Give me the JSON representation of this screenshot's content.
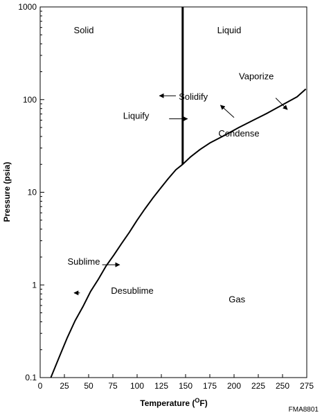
{
  "chart_data": {
    "type": "line",
    "title": "",
    "xlabel": "Temperature (",
    "xlabel_sup": "O",
    "xlabel_unit": "F)",
    "ylabel": "Pressure (psia)",
    "xlim": [
      0,
      275
    ],
    "ylim": [
      0.1,
      1000
    ],
    "yscale": "log",
    "grid": false,
    "x_ticks": [
      0,
      25,
      50,
      75,
      100,
      125,
      150,
      175,
      200,
      225,
      250,
      275
    ],
    "y_ticks": [
      {
        "value": 0.1,
        "label": "0.1"
      },
      {
        "value": 1,
        "label": "1"
      },
      {
        "value": 10,
        "label": "10"
      },
      {
        "value": 100,
        "label": "100"
      },
      {
        "value": 1000,
        "label": "1000"
      }
    ],
    "series": [
      {
        "x": [
          11,
          20,
          28,
          36,
          44,
          52,
          60,
          68,
          76,
          84,
          92,
          100,
          108,
          116,
          124,
          132,
          140,
          147,
          155,
          165,
          175,
          190,
          205,
          220,
          235,
          250,
          265,
          274
        ],
        "y": [
          0.1,
          0.17,
          0.27,
          0.41,
          0.58,
          0.85,
          1.15,
          1.6,
          2.1,
          2.8,
          3.7,
          5.0,
          6.6,
          8.6,
          11.0,
          14.0,
          17.5,
          20.0,
          24.0,
          29.0,
          34.0,
          41.0,
          50.0,
          60.0,
          72.0,
          88.0,
          107.0,
          130.0
        ]
      },
      {
        "x": [
          147,
          147
        ],
        "y": [
          20,
          1000
        ]
      }
    ],
    "regions": [
      {
        "text": "Solid",
        "x": 45,
        "y": 520
      },
      {
        "text": "Liquid",
        "x": 195,
        "y": 520
      },
      {
        "text": "Gas",
        "x": 203,
        "y": 0.65
      },
      {
        "text": "Desublime",
        "x": 95,
        "y": 0.8
      }
    ],
    "annotations": [
      {
        "text": "Solidify",
        "x": 158,
        "y": 100,
        "arrow": {
          "from": [
            140,
            110
          ],
          "to": [
            123,
            110
          ]
        }
      },
      {
        "text": "Liquify",
        "x": 99,
        "y": 62,
        "arrow": {
          "from": [
            133,
            62
          ],
          "to": [
            152,
            62
          ]
        }
      },
      {
        "text": "Vaporize",
        "x": 223,
        "y": 165,
        "arrow": {
          "from": [
            243,
            104
          ],
          "to": [
            255,
            78
          ]
        }
      },
      {
        "text": "Condense",
        "x": 205,
        "y": 40,
        "arrow": {
          "from": [
            200,
            64
          ],
          "to": [
            186,
            87
          ]
        }
      },
      {
        "text": "Sublime",
        "x": 45,
        "y": 1.65,
        "arrow": {
          "from": [
            64,
            1.65
          ],
          "to": [
            82,
            1.65
          ]
        }
      },
      {
        "text": "",
        "x": 37,
        "y": 0.82,
        "arrow": {
          "from": [
            41,
            0.82
          ],
          "to": [
            35,
            0.82
          ]
        }
      }
    ],
    "code": "FMA8801"
  }
}
